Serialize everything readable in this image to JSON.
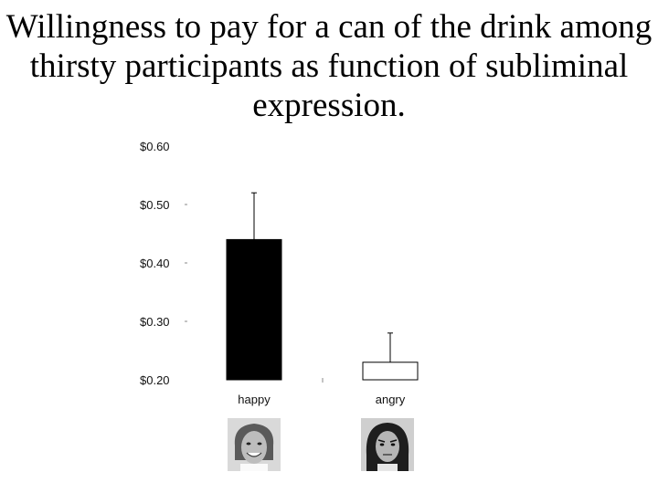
{
  "title": "Willingness to pay for a can of the drink among thirsty participants as function of subliminal expression.",
  "chart_data": {
    "type": "bar",
    "categories": [
      "happy",
      "angry"
    ],
    "values": [
      0.44,
      0.23
    ],
    "error_upper": [
      0.52,
      0.28
    ],
    "ylim": [
      0.2,
      0.6
    ],
    "yticks": [
      "$0.60",
      "$0.50",
      "$0.40",
      "$0.30",
      "$0.20"
    ],
    "ytick_values": [
      0.6,
      0.5,
      0.4,
      0.3,
      0.2
    ],
    "bar_fills": [
      "#000000",
      "#ffffff"
    ],
    "grid": false,
    "legend": "none"
  },
  "images": {
    "happy_face": "happy-face-photo",
    "angry_face": "angry-face-photo"
  }
}
